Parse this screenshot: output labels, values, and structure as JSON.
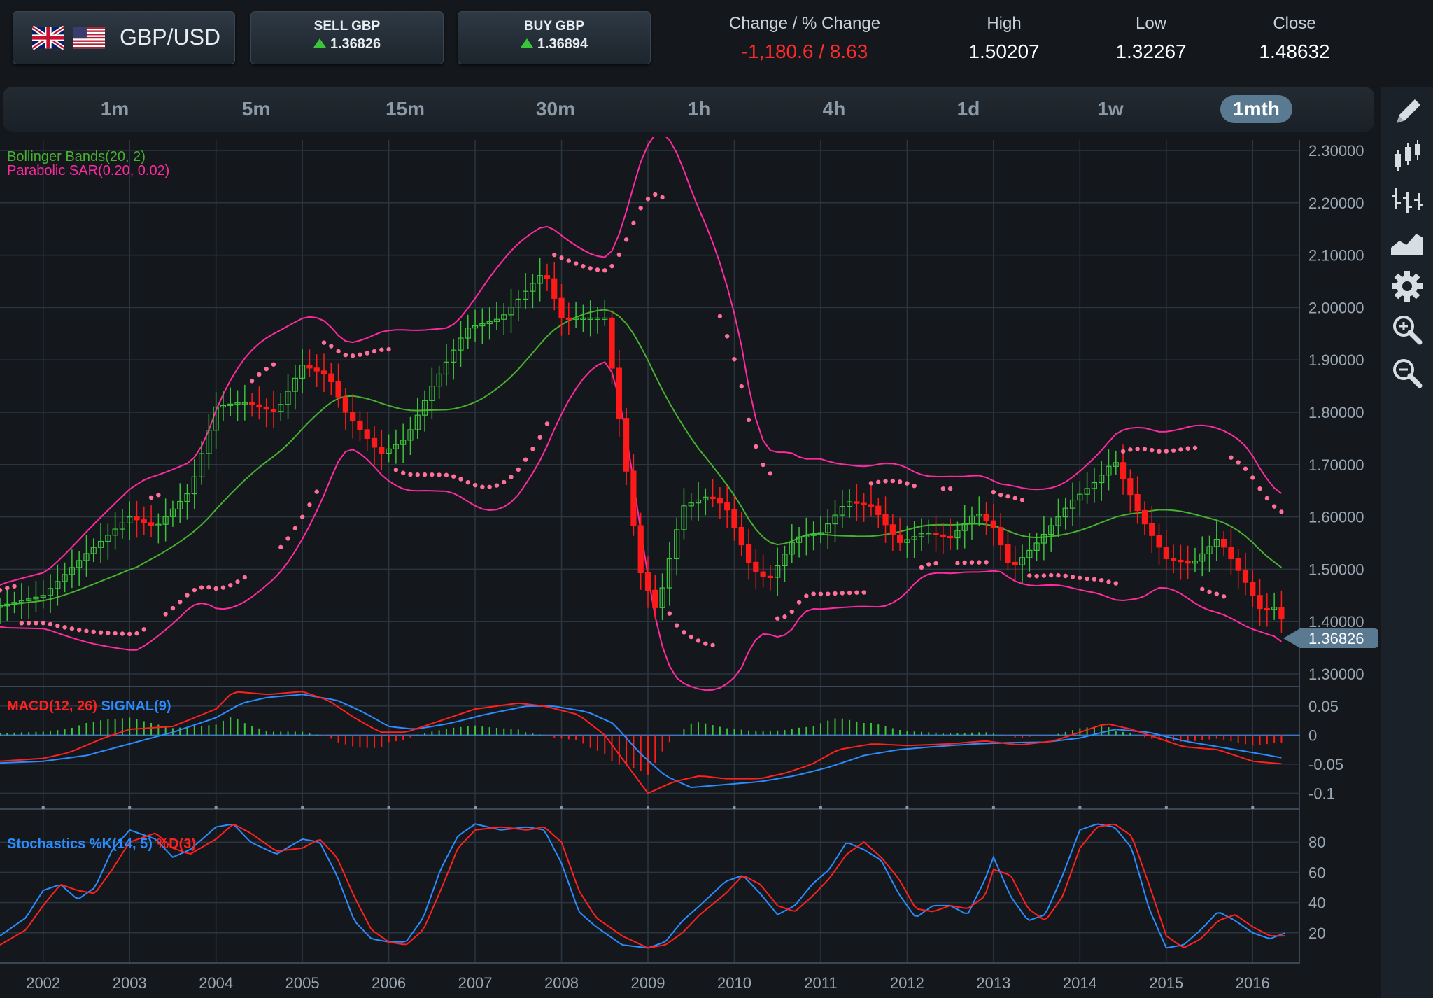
{
  "header": {
    "pair": "GBP/USD",
    "flags": [
      "uk-flag-icon",
      "us-flag-icon"
    ],
    "sell": {
      "label": "SELL GBP",
      "price": "1.36826"
    },
    "buy": {
      "label": "BUY GBP",
      "price": "1.36894"
    },
    "stats": [
      {
        "label": "Change / % Change",
        "value": "-1,180.6 / 8.63",
        "negative": true
      },
      {
        "label": "High",
        "value": "1.50207"
      },
      {
        "label": "Low",
        "value": "1.32267"
      },
      {
        "label": "Close",
        "value": "1.48632"
      }
    ]
  },
  "timeframes": [
    "1m",
    "5m",
    "15m",
    "30m",
    "1h",
    "4h",
    "1d",
    "1w",
    "1mth"
  ],
  "active_timeframe": "1mth",
  "toolbar": [
    "pencil-icon",
    "candlestick-icon",
    "ohlc-bars-icon",
    "area-chart-icon",
    "gear-icon",
    "zoom-in-icon",
    "zoom-out-icon"
  ],
  "colors": {
    "up": "#3cc33c",
    "down": "#ff1a1a",
    "bollinger": "#ff2aa0",
    "bollinger_mid": "#48b030",
    "sar": "#ff6f9a",
    "macd": "#ff2020",
    "signal": "#2a8cff",
    "accent": "#5a7a92"
  },
  "chart_data": [
    {
      "type": "candlestick",
      "title": "GBP/USD 1mth",
      "indicators": [
        "Bollinger Bands(20, 2)",
        "Parabolic SAR(0.20, 0.02)"
      ],
      "x_ticks": [
        "2002",
        "2003",
        "2004",
        "2005",
        "2006",
        "2007",
        "2008",
        "2009",
        "2010",
        "2011",
        "2012",
        "2013",
        "2014",
        "2015",
        "2016"
      ],
      "y_ticks": [
        "2.30000",
        "2.20000",
        "2.10000",
        "2.00000",
        "1.90000",
        "1.80000",
        "1.70000",
        "1.60000",
        "1.50000",
        "1.40000",
        "1.30000"
      ],
      "ylim": [
        1.28,
        2.32
      ],
      "current_price": "1.36826",
      "close_anchors": [
        [
          2001.5,
          1.43
        ],
        [
          2002.0,
          1.45
        ],
        [
          2002.5,
          1.53
        ],
        [
          2003.0,
          1.6
        ],
        [
          2003.3,
          1.58
        ],
        [
          2003.7,
          1.65
        ],
        [
          2004.0,
          1.81
        ],
        [
          2004.3,
          1.82
        ],
        [
          2004.7,
          1.8
        ],
        [
          2005.0,
          1.89
        ],
        [
          2005.3,
          1.87
        ],
        [
          2005.5,
          1.8
        ],
        [
          2005.9,
          1.72
        ],
        [
          2006.2,
          1.75
        ],
        [
          2006.5,
          1.85
        ],
        [
          2006.9,
          1.96
        ],
        [
          2007.3,
          1.98
        ],
        [
          2007.8,
          2.07
        ],
        [
          2008.0,
          1.98
        ],
        [
          2008.3,
          1.98
        ],
        [
          2008.5,
          1.98
        ],
        [
          2008.7,
          1.75
        ],
        [
          2008.9,
          1.5
        ],
        [
          2009.1,
          1.42
        ],
        [
          2009.4,
          1.62
        ],
        [
          2009.7,
          1.64
        ],
        [
          2009.9,
          1.62
        ],
        [
          2010.2,
          1.5
        ],
        [
          2010.4,
          1.48
        ],
        [
          2010.7,
          1.56
        ],
        [
          2011.0,
          1.57
        ],
        [
          2011.3,
          1.63
        ],
        [
          2011.6,
          1.62
        ],
        [
          2011.9,
          1.55
        ],
        [
          2012.2,
          1.57
        ],
        [
          2012.5,
          1.56
        ],
        [
          2012.8,
          1.61
        ],
        [
          2013.0,
          1.58
        ],
        [
          2013.2,
          1.5
        ],
        [
          2013.5,
          1.55
        ],
        [
          2013.9,
          1.63
        ],
        [
          2014.2,
          1.67
        ],
        [
          2014.4,
          1.71
        ],
        [
          2014.7,
          1.6
        ],
        [
          2015.0,
          1.52
        ],
        [
          2015.3,
          1.51
        ],
        [
          2015.6,
          1.56
        ],
        [
          2015.9,
          1.48
        ],
        [
          2016.1,
          1.42
        ],
        [
          2016.3,
          1.43
        ],
        [
          2016.38,
          1.37
        ]
      ]
    },
    {
      "type": "line",
      "title": "MACD(12, 26) SIGNAL(9)",
      "series": [
        {
          "name": "MACD(12, 26)"
        },
        {
          "name": "SIGNAL(9)"
        }
      ],
      "y_ticks": [
        "0.05",
        "0",
        "-0.05",
        "-0.1"
      ],
      "ylim": [
        -0.12,
        0.08
      ],
      "macd_anchors": [
        [
          2001.5,
          -0.045
        ],
        [
          2002.0,
          -0.04
        ],
        [
          2002.3,
          -0.03
        ],
        [
          2002.7,
          -0.005
        ],
        [
          2003.0,
          0.01
        ],
        [
          2003.5,
          0.015
        ],
        [
          2004.0,
          0.045
        ],
        [
          2004.2,
          0.075
        ],
        [
          2004.6,
          0.07
        ],
        [
          2005.0,
          0.075
        ],
        [
          2005.3,
          0.06
        ],
        [
          2005.6,
          0.03
        ],
        [
          2005.9,
          0.005
        ],
        [
          2006.2,
          0.005
        ],
        [
          2006.6,
          0.025
        ],
        [
          2007.0,
          0.045
        ],
        [
          2007.5,
          0.055
        ],
        [
          2007.8,
          0.05
        ],
        [
          2008.2,
          0.035
        ],
        [
          2008.5,
          0.0
        ],
        [
          2008.8,
          -0.06
        ],
        [
          2009.0,
          -0.1
        ],
        [
          2009.3,
          -0.08
        ],
        [
          2009.6,
          -0.07
        ],
        [
          2009.9,
          -0.075
        ],
        [
          2010.3,
          -0.075
        ],
        [
          2010.6,
          -0.065
        ],
        [
          2010.9,
          -0.05
        ],
        [
          2011.2,
          -0.025
        ],
        [
          2011.6,
          -0.015
        ],
        [
          2012.0,
          -0.018
        ],
        [
          2012.5,
          -0.015
        ],
        [
          2012.9,
          -0.01
        ],
        [
          2013.3,
          -0.017
        ],
        [
          2013.7,
          -0.01
        ],
        [
          2014.0,
          0.005
        ],
        [
          2014.3,
          0.02
        ],
        [
          2014.6,
          0.01
        ],
        [
          2014.9,
          -0.005
        ],
        [
          2015.2,
          -0.02
        ],
        [
          2015.6,
          -0.025
        ],
        [
          2016.0,
          -0.045
        ],
        [
          2016.38,
          -0.05
        ]
      ],
      "signal_anchors": [
        [
          2001.5,
          -0.048
        ],
        [
          2002.0,
          -0.045
        ],
        [
          2002.5,
          -0.035
        ],
        [
          2003.0,
          -0.015
        ],
        [
          2003.5,
          0.005
        ],
        [
          2004.0,
          0.03
        ],
        [
          2004.3,
          0.055
        ],
        [
          2004.6,
          0.065
        ],
        [
          2005.0,
          0.07
        ],
        [
          2005.4,
          0.06
        ],
        [
          2005.7,
          0.04
        ],
        [
          2006.0,
          0.015
        ],
        [
          2006.3,
          0.01
        ],
        [
          2006.7,
          0.02
        ],
        [
          2007.1,
          0.035
        ],
        [
          2007.6,
          0.05
        ],
        [
          2007.9,
          0.05
        ],
        [
          2008.3,
          0.04
        ],
        [
          2008.6,
          0.02
        ],
        [
          2008.9,
          -0.03
        ],
        [
          2009.2,
          -0.07
        ],
        [
          2009.5,
          -0.09
        ],
        [
          2009.9,
          -0.085
        ],
        [
          2010.3,
          -0.08
        ],
        [
          2010.7,
          -0.07
        ],
        [
          2011.1,
          -0.055
        ],
        [
          2011.5,
          -0.035
        ],
        [
          2011.9,
          -0.025
        ],
        [
          2012.3,
          -0.02
        ],
        [
          2012.8,
          -0.015
        ],
        [
          2013.2,
          -0.013
        ],
        [
          2013.6,
          -0.012
        ],
        [
          2014.0,
          -0.005
        ],
        [
          2014.4,
          0.01
        ],
        [
          2014.8,
          0.005
        ],
        [
          2015.2,
          -0.01
        ],
        [
          2015.6,
          -0.02
        ],
        [
          2016.0,
          -0.03
        ],
        [
          2016.38,
          -0.04
        ]
      ]
    },
    {
      "type": "line",
      "title": "Stochastics %K(14, 5) %D(3)",
      "series": [
        {
          "name": "%K(14, 5)"
        },
        {
          "name": "%D(3)"
        }
      ],
      "y_ticks": [
        "80",
        "60",
        "40",
        "20"
      ],
      "ylim": [
        0,
        100
      ],
      "k_anchors": [
        [
          2001.5,
          18
        ],
        [
          2001.8,
          30
        ],
        [
          2002.0,
          48
        ],
        [
          2002.2,
          52
        ],
        [
          2002.4,
          42
        ],
        [
          2002.6,
          50
        ],
        [
          2002.8,
          75
        ],
        [
          2003.0,
          88
        ],
        [
          2003.3,
          82
        ],
        [
          2003.5,
          70
        ],
        [
          2003.7,
          75
        ],
        [
          2004.0,
          90
        ],
        [
          2004.2,
          92
        ],
        [
          2004.4,
          80
        ],
        [
          2004.7,
          72
        ],
        [
          2005.0,
          82
        ],
        [
          2005.2,
          80
        ],
        [
          2005.4,
          58
        ],
        [
          2005.6,
          28
        ],
        [
          2005.8,
          16
        ],
        [
          2006.0,
          14
        ],
        [
          2006.2,
          14
        ],
        [
          2006.4,
          30
        ],
        [
          2006.6,
          62
        ],
        [
          2006.8,
          84
        ],
        [
          2007.0,
          92
        ],
        [
          2007.3,
          88
        ],
        [
          2007.6,
          90
        ],
        [
          2007.8,
          88
        ],
        [
          2008.0,
          66
        ],
        [
          2008.2,
          34
        ],
        [
          2008.4,
          24
        ],
        [
          2008.7,
          12
        ],
        [
          2009.0,
          10
        ],
        [
          2009.2,
          14
        ],
        [
          2009.4,
          28
        ],
        [
          2009.6,
          38
        ],
        [
          2009.9,
          54
        ],
        [
          2010.1,
          58
        ],
        [
          2010.3,
          46
        ],
        [
          2010.5,
          32
        ],
        [
          2010.7,
          38
        ],
        [
          2010.9,
          52
        ],
        [
          2011.1,
          62
        ],
        [
          2011.3,
          80
        ],
        [
          2011.5,
          75
        ],
        [
          2011.7,
          68
        ],
        [
          2011.9,
          46
        ],
        [
          2012.1,
          30
        ],
        [
          2012.3,
          38
        ],
        [
          2012.5,
          38
        ],
        [
          2012.7,
          32
        ],
        [
          2012.9,
          55
        ],
        [
          2013.0,
          70
        ],
        [
          2013.2,
          44
        ],
        [
          2013.4,
          28
        ],
        [
          2013.6,
          32
        ],
        [
          2013.8,
          58
        ],
        [
          2014.0,
          88
        ],
        [
          2014.2,
          92
        ],
        [
          2014.4,
          90
        ],
        [
          2014.6,
          76
        ],
        [
          2014.8,
          36
        ],
        [
          2015.0,
          10
        ],
        [
          2015.2,
          12
        ],
        [
          2015.4,
          22
        ],
        [
          2015.6,
          34
        ],
        [
          2015.8,
          28
        ],
        [
          2016.0,
          20
        ],
        [
          2016.2,
          16
        ],
        [
          2016.38,
          20
        ]
      ],
      "d_anchors": [
        [
          2001.5,
          12
        ],
        [
          2001.8,
          22
        ],
        [
          2002.0,
          38
        ],
        [
          2002.2,
          52
        ],
        [
          2002.4,
          48
        ],
        [
          2002.6,
          46
        ],
        [
          2002.8,
          62
        ],
        [
          2003.0,
          80
        ],
        [
          2003.3,
          86
        ],
        [
          2003.5,
          76
        ],
        [
          2003.7,
          72
        ],
        [
          2004.0,
          82
        ],
        [
          2004.2,
          92
        ],
        [
          2004.4,
          86
        ],
        [
          2004.7,
          74
        ],
        [
          2005.0,
          76
        ],
        [
          2005.2,
          82
        ],
        [
          2005.4,
          70
        ],
        [
          2005.6,
          44
        ],
        [
          2005.8,
          22
        ],
        [
          2006.0,
          14
        ],
        [
          2006.2,
          12
        ],
        [
          2006.4,
          22
        ],
        [
          2006.6,
          48
        ],
        [
          2006.8,
          76
        ],
        [
          2007.0,
          88
        ],
        [
          2007.3,
          90
        ],
        [
          2007.6,
          88
        ],
        [
          2007.8,
          90
        ],
        [
          2008.0,
          80
        ],
        [
          2008.2,
          48
        ],
        [
          2008.4,
          30
        ],
        [
          2008.7,
          18
        ],
        [
          2009.0,
          10
        ],
        [
          2009.2,
          12
        ],
        [
          2009.4,
          20
        ],
        [
          2009.6,
          32
        ],
        [
          2009.9,
          46
        ],
        [
          2010.1,
          58
        ],
        [
          2010.3,
          52
        ],
        [
          2010.5,
          38
        ],
        [
          2010.7,
          34
        ],
        [
          2010.9,
          44
        ],
        [
          2011.1,
          56
        ],
        [
          2011.3,
          72
        ],
        [
          2011.5,
          80
        ],
        [
          2011.7,
          70
        ],
        [
          2011.9,
          56
        ],
        [
          2012.1,
          36
        ],
        [
          2012.3,
          34
        ],
        [
          2012.5,
          38
        ],
        [
          2012.7,
          36
        ],
        [
          2012.9,
          44
        ],
        [
          2013.0,
          62
        ],
        [
          2013.2,
          58
        ],
        [
          2013.4,
          36
        ],
        [
          2013.6,
          28
        ],
        [
          2013.8,
          44
        ],
        [
          2014.0,
          76
        ],
        [
          2014.2,
          90
        ],
        [
          2014.4,
          92
        ],
        [
          2014.6,
          84
        ],
        [
          2014.8,
          52
        ],
        [
          2015.0,
          18
        ],
        [
          2015.2,
          10
        ],
        [
          2015.4,
          16
        ],
        [
          2015.6,
          28
        ],
        [
          2015.8,
          32
        ],
        [
          2016.0,
          24
        ],
        [
          2016.2,
          18
        ],
        [
          2016.38,
          18
        ]
      ]
    }
  ]
}
